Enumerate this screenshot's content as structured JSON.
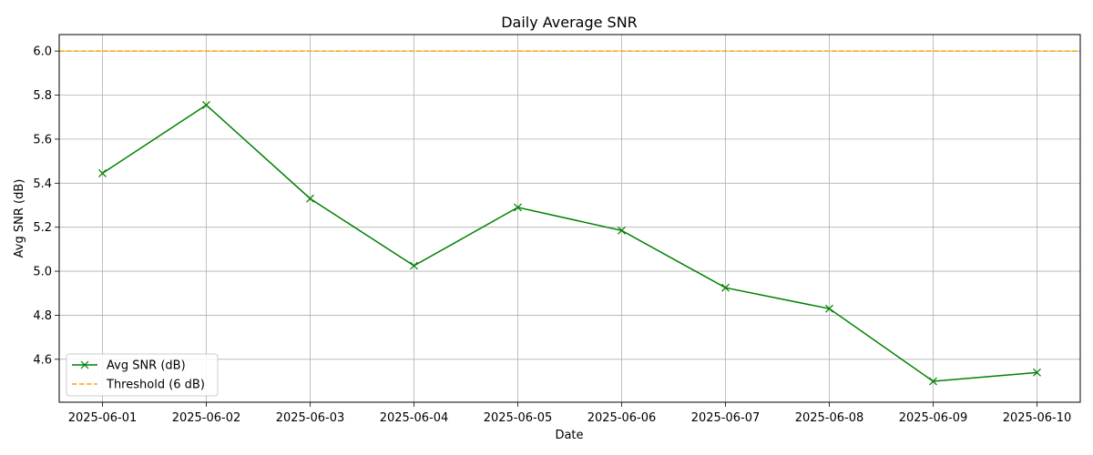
{
  "chart_data": {
    "type": "line",
    "title": "Daily Average SNR",
    "xlabel": "Date",
    "ylabel": "Avg SNR (dB)",
    "x": [
      "2025-06-01",
      "2025-06-02",
      "2025-06-03",
      "2025-06-04",
      "2025-06-05",
      "2025-06-06",
      "2025-06-07",
      "2025-06-08",
      "2025-06-09",
      "2025-06-10"
    ],
    "xlim": [
      "2025-05-31T14:00",
      "2025-06-10T10:00"
    ],
    "ylim": [
      4.405,
      6.075
    ],
    "yticks": [
      "4.6",
      "4.8",
      "5.0",
      "5.2",
      "5.4",
      "5.6",
      "5.8",
      "6.0"
    ],
    "grid": true,
    "legend_position": "lower-left",
    "series": [
      {
        "name": "Avg SNR (dB)",
        "values": [
          5.445,
          5.755,
          5.33,
          5.025,
          5.29,
          5.185,
          4.925,
          4.83,
          4.5,
          4.54
        ],
        "color": "#008000",
        "marker": "x"
      }
    ],
    "reference_lines": [
      {
        "name": "Threshold (6 dB)",
        "value": 6.0,
        "color": "#ffa500",
        "style": "dashed"
      }
    ]
  }
}
